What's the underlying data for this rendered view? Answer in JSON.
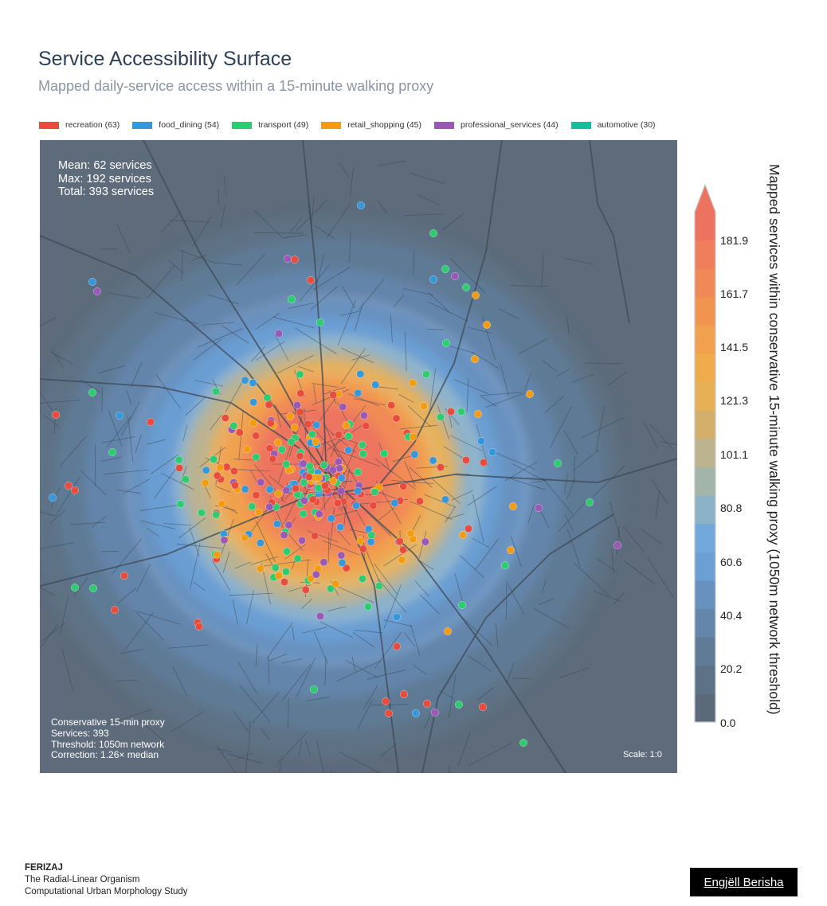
{
  "title": "Service Accessibility Surface",
  "subtitle": "Mapped daily-service access within a 15-minute walking proxy",
  "legend": [
    {
      "label": "recreation (63)",
      "color": "#e74c3c"
    },
    {
      "label": "food_dining (54)",
      "color": "#3498db"
    },
    {
      "label": "transport (49)",
      "color": "#2ecc71"
    },
    {
      "label": "retail_shopping (45)",
      "color": "#f39c12"
    },
    {
      "label": "professional_services (44)",
      "color": "#9b59b6"
    },
    {
      "label": "automotive (30)",
      "color": "#1abc9c"
    }
  ],
  "stats": {
    "mean": "Mean: 62 services",
    "max": "Max: 192 services",
    "total": "Total: 393 services"
  },
  "info": {
    "line1": "Conservative 15-min proxy",
    "line2": "Services: 393",
    "line3": "Threshold: 1050m network",
    "line4": "Correction: 1.26× median"
  },
  "scale": "Scale: 1:0",
  "colorbar": {
    "title": "Mapped services within conservative 15-minute walking proxy (1050m network threshold)",
    "ticks": [
      "0.0",
      "20.2",
      "40.4",
      "60.6",
      "80.8",
      "101.1",
      "121.3",
      "141.5",
      "161.7",
      "181.9"
    ],
    "colors": [
      "#5b6a79",
      "#5e7287",
      "#607b96",
      "#6486ab",
      "#6891c0",
      "#6c9fd4",
      "#72a8dc",
      "#8cb2c8",
      "#a3b5a8",
      "#bcb38f",
      "#d4af6c",
      "#e8b055",
      "#f0ab4d",
      "#f1a04d",
      "#f1944f",
      "#f08956",
      "#ef7f5c",
      "#ec735f"
    ]
  },
  "footer": {
    "city": "FERIZAJ",
    "line1": "The Radial-Linear Organism",
    "line2": "Computational Urban Morphology Study"
  },
  "author": "Engjëll Berisha"
}
